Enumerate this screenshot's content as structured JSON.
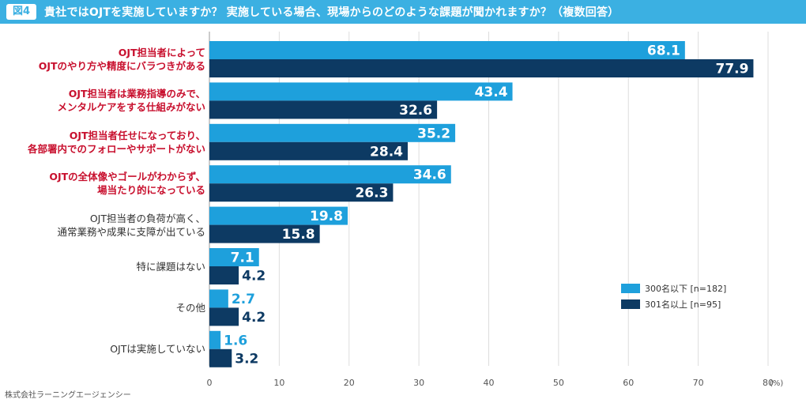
{
  "header": {
    "figure_label": "図4",
    "title": "貴社ではOJTを実施していますか？ 実施している場合、現場からのどのような課題が聞かれますか？（複数回答）"
  },
  "colors": {
    "header": "#3bb0e2",
    "series1": "#1ea0dc",
    "series2": "#0d3a63",
    "highlight_label": "#c8102e"
  },
  "source": "株式会社ラーニングエージェンシー",
  "chart_data": {
    "type": "bar",
    "orientation": "horizontal",
    "title": "貴社ではOJTを実施していますか？ 実施している場合、現場からのどのような課題が聞かれますか？（複数回答）",
    "unit_label": "(%)",
    "xlim": [
      0,
      80
    ],
    "ticks": [
      0,
      10,
      20,
      30,
      40,
      50,
      60,
      70,
      80
    ],
    "grid": true,
    "legend_position": "bottom-right",
    "categories": [
      {
        "lines": [
          "OJT担当者によって",
          "OJTのやり方や精度にバラつきがある"
        ],
        "highlight": true
      },
      {
        "lines": [
          "OJT担当者は業務指導のみで、",
          "メンタルケアをする仕組みがない"
        ],
        "highlight": true
      },
      {
        "lines": [
          "OJT担当者任せになっており、",
          "各部署内でのフォローやサポートがない"
        ],
        "highlight": true
      },
      {
        "lines": [
          "OJTの全体像やゴールがわからず、",
          "場当たり的になっている"
        ],
        "highlight": true
      },
      {
        "lines": [
          "OJT担当者の負荷が高く、",
          "通常業務や成果に支障が出ている"
        ],
        "highlight": false
      },
      {
        "lines": [
          "特に課題はない"
        ],
        "highlight": false
      },
      {
        "lines": [
          "その他"
        ],
        "highlight": false
      },
      {
        "lines": [
          "OJTは実施していない"
        ],
        "highlight": false
      }
    ],
    "series": [
      {
        "name": "300名以下 [n=182]",
        "values": [
          68.1,
          43.4,
          35.2,
          34.6,
          19.8,
          7.1,
          2.7,
          1.6
        ]
      },
      {
        "name": "301名以上 [n=95]",
        "values": [
          77.9,
          32.6,
          28.4,
          26.3,
          15.8,
          4.2,
          4.2,
          3.2
        ]
      }
    ]
  }
}
